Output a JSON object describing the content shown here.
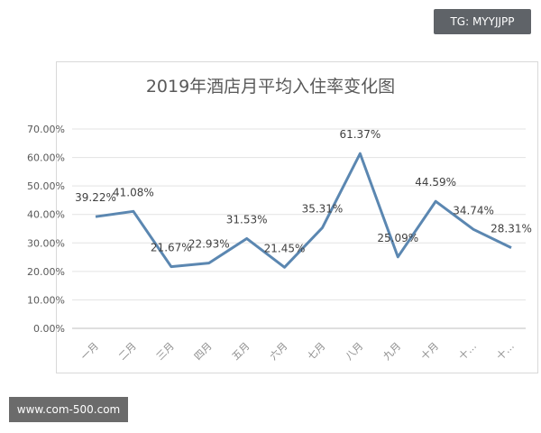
{
  "chart_data": {
    "type": "line",
    "title": "2019年酒店月平均入住率变化图",
    "categories": [
      "一月",
      "二月",
      "三月",
      "四月",
      "五月",
      "六月",
      "七月",
      "八月",
      "九月",
      "十月",
      "十…",
      "十…"
    ],
    "values": [
      39.22,
      41.08,
      21.67,
      22.93,
      31.53,
      21.45,
      35.31,
      61.37,
      25.09,
      44.59,
      34.74,
      28.31
    ],
    "data_labels": [
      "39.22%",
      "41.08%",
      "21.67%",
      "22.93%",
      "31.53%",
      "21.45%",
      "35.31%",
      "61.37%",
      "25.09%",
      "44.59%",
      "34.74%",
      "28.31%"
    ],
    "y_ticks": [
      "0.00%",
      "10.00%",
      "20.00%",
      "30.00%",
      "40.00%",
      "50.00%",
      "60.00%",
      "70.00%"
    ],
    "ylim": [
      0,
      70
    ],
    "grid": true,
    "legend": "none",
    "line_color": "#5b87b1"
  },
  "watermarks": {
    "top_right": "TG: MYYJJPP",
    "bottom_left": "www.com-500.com"
  }
}
